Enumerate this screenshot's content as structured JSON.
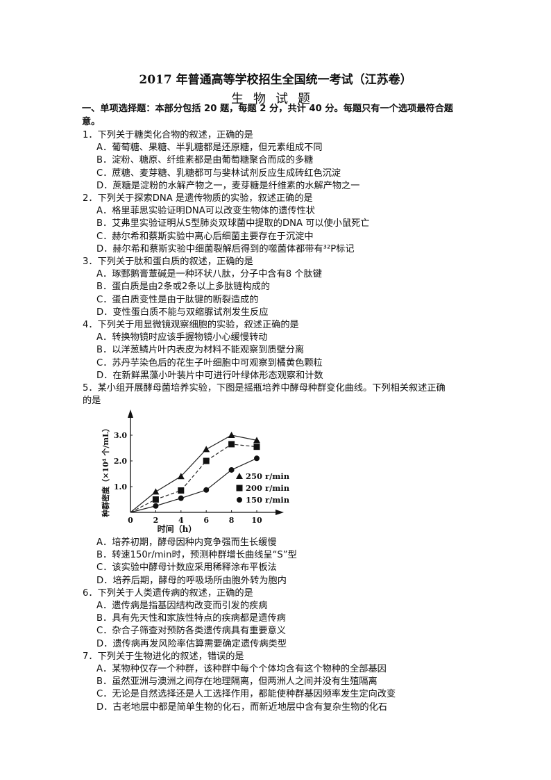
{
  "header": {
    "title": "2017 年普通高等学校招生全国统一考试（江苏卷）",
    "subtitle": "生物试题",
    "section": "一、单项选择题：本部分包括 20 题，每题 2 分，共计 40 分。每题只有一个选项最符合题意。"
  },
  "questions": [
    {
      "stem": "1．下列关于糖类化合物的叙述，正确的是",
      "options": [
        "A．葡萄糖、果糖、半乳糖都是还原糖，但元素组成不同",
        "B．淀粉、糖原、纤维素都是由葡萄糖聚合而成的多糖",
        "C．蔗糖、麦芽糖、乳糖都可与斐林试剂反应生成砖红色沉淀",
        "D．蔗糖是淀粉的水解产物之一，麦芽糖是纤维素的水解产物之一"
      ]
    },
    {
      "stem": "2．下列关于探索DNA 是遗传物质的实验，叙述正确的是",
      "options": [
        "A．格里菲思实验证明DNA可以改变生物体的遗传性状",
        "B．艾弗里实验证明从S型肺炎双球菌中提取的DNA 可以使小鼠死亡",
        "C．赫尔希和蔡斯实验中离心后细菌主要存在于沉淀中",
        "D．赫尔希和蔡斯实验中细菌裂解后得到的噬菌体都带有³²P标记"
      ]
    },
    {
      "stem": "3．下列关于肽和蛋白质的叙述，正确的是",
      "options": [
        "A．琢鄄鹅膏蕈碱是一种环状八肽，分子中含有8 个肽键",
        "B．蛋白质是由2条或2条以上多肽链构成的",
        "C．蛋白质变性是由于肽键的断裂造成的",
        "D．变性蛋白质不能与双缩脲试剂发生反应"
      ]
    },
    {
      "stem": "4．下列关于用显微镜观察细胞的实验，叙述正确的是",
      "options": [
        "A．转换物镜时应该手握物镜小心缓慢转动",
        "B．以洋葱鳞片叶内表皮为材料不能观察到质壁分离",
        "C．苏丹芋染色后的花生子叶细胞中可观察到橘黄色颗粒",
        "D．在新鲜黑藻小叶装片中可进行叶绿体形态观察和计数"
      ]
    },
    {
      "stem": "5．某小组开展酵母菌培养实验，下图是摇瓶培养中酵母种群变化曲线。下列相关叙述正确",
      "stem_cont": "的是",
      "options": [
        "A．培养初期，酵母因种内竞争强而生长缓慢",
        "B．转速150r/min时，预测种群增长曲线呈“S”型",
        "C．该实验中酵母计数应采用稀释涂布平板法",
        "D．培养后期，酵母的呼吸场所由胞外转为胞内"
      ]
    },
    {
      "stem": "6．下列关于人类遗传病的叙述，正确的是",
      "options": [
        "A．遗传病是指基因结构改变而引发的疾病",
        "B．具有先天性和家族性特点的疾病都是遗传病",
        "C．杂合子筛查对预防各类遗传病具有重要意义",
        "D．遗传病再发风险率估算需要确定遗传病类型"
      ]
    },
    {
      "stem": "7．下列关于生物进化的叙述，错误的是",
      "options": [
        "A．某物种仅存一个种群，该种群中每个个体均含有这个物种的全部基因",
        "B．虽然亚洲与澳洲之间存在地理隔离，但两洲人之间并没有生殖隔离",
        "C．无论是自然选择还是人工选择作用，都能使种群基因频率发生定向改变",
        "D．古老地层中都是简单生物的化石，而新近地层中含有复杂生物的化石"
      ]
    }
  ],
  "chart_data": {
    "type": "line",
    "xlabel": "时间（h）",
    "ylabel": "种群密度（×10⁴ 个/mL）",
    "x": [
      0,
      2,
      4,
      6,
      8,
      10
    ],
    "x_ticks": [
      "0",
      "2",
      "4",
      "6",
      "8",
      "10"
    ],
    "y_ticks": [
      "1.0",
      "2.0",
      "3.0"
    ],
    "xlim": [
      0,
      12
    ],
    "ylim": [
      0,
      3.7
    ],
    "legend_position": "right",
    "series": [
      {
        "name": "250 r/min",
        "marker": "triangle",
        "dash": false,
        "values": [
          0,
          0.8,
          1.4,
          2.45,
          3.0,
          2.8
        ]
      },
      {
        "name": "200 r/min",
        "marker": "square",
        "dash": true,
        "values": [
          0,
          0.5,
          0.85,
          2.0,
          2.65,
          2.55
        ]
      },
      {
        "name": "150 r/min",
        "marker": "circle",
        "dash": false,
        "values": [
          0,
          0.25,
          0.55,
          0.87,
          1.65,
          2.1
        ]
      }
    ]
  }
}
